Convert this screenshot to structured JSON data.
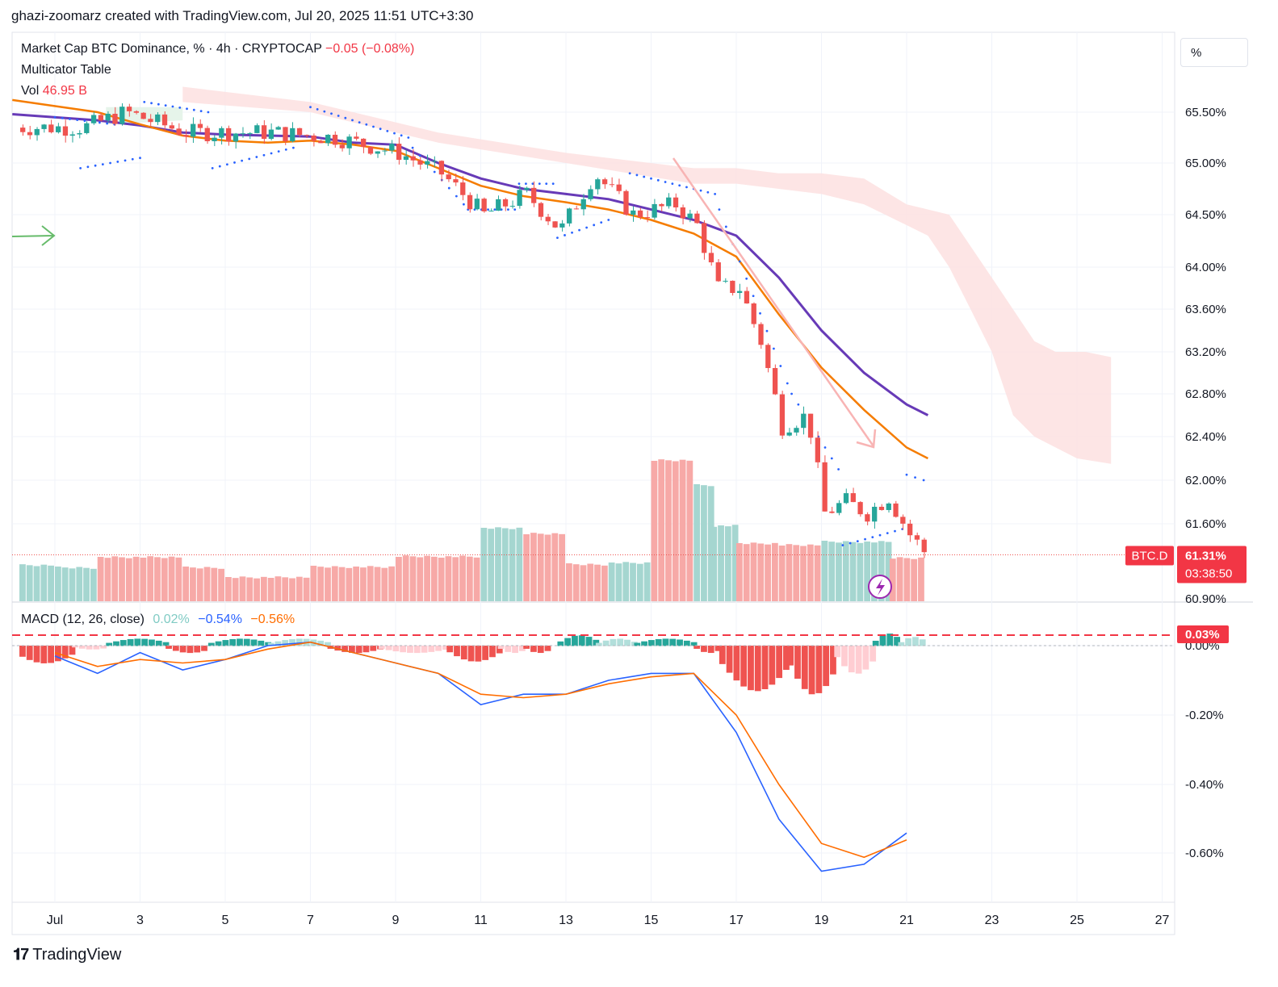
{
  "header": {
    "author_line": "ghazi-zoomarz created with TradingView.com, Jul 20, 2025 11:51 UTC+3:30"
  },
  "legend": {
    "symbol": "Market Cap BTC Dominance, % · 4h · CRYPTOCAP",
    "change": "−0.05 (−0.08%)",
    "indicator": "Multicator Table",
    "vol_label": "Vol",
    "vol_value": "46.95 B",
    "macd_label": "MACD (12, 26, close)",
    "macd_hist": "0.02%",
    "macd_line": "−0.54%",
    "macd_signal": "−0.56%"
  },
  "price_scale": {
    "unit": "%"
  },
  "price_tag": {
    "symbol": "BTC.D",
    "value": "61.31%",
    "countdown": "03:38:50"
  },
  "macd_tag": {
    "value": "0.03%"
  },
  "brand": {
    "name": "TradingView"
  },
  "colors": {
    "up": "#26a69a",
    "down": "#ef5350",
    "ma_purple": "#673ab7",
    "ma_orange": "#f57c00",
    "macd_line": "#2962ff",
    "signal_line": "#ff6d00",
    "cloud": "#fde0e0",
    "psar": "#2962ff"
  },
  "chart_data": [
    {
      "type": "candlestick",
      "title": "Market Cap BTC Dominance",
      "x_ticks": [
        "Jul",
        "3",
        "5",
        "7",
        "9",
        "11",
        "13",
        "15",
        "17",
        "19",
        "21",
        "23",
        "25",
        "27"
      ],
      "y_ticks": [
        "65.50%",
        "65.00%",
        "64.50%",
        "64.00%",
        "63.60%",
        "63.20%",
        "62.80%",
        "62.40%",
        "62.00%",
        "61.60%",
        "60.90%"
      ],
      "ylim": [
        60.9,
        65.8
      ],
      "last_price": 61.31,
      "key_levels": [
        {
          "x": 0.6,
          "y": 65.35
        },
        {
          "x": 1.6,
          "y": 65.5
        },
        {
          "x": 3.0,
          "y": 65.3
        },
        {
          "x": 5.0,
          "y": 65.3
        },
        {
          "x": 6.5,
          "y": 65.25
        },
        {
          "x": 8.0,
          "y": 65.1
        },
        {
          "x": 9.0,
          "y": 64.9
        },
        {
          "x": 10.0,
          "y": 64.5
        },
        {
          "x": 11.0,
          "y": 64.7
        },
        {
          "x": 11.8,
          "y": 64.35
        },
        {
          "x": 12.6,
          "y": 64.9
        },
        {
          "x": 13.5,
          "y": 64.5
        },
        {
          "x": 14.5,
          "y": 64.6
        },
        {
          "x": 15.0,
          "y": 64.4
        },
        {
          "x": 15.5,
          "y": 63.8
        },
        {
          "x": 16.0,
          "y": 63.8
        },
        {
          "x": 16.5,
          "y": 63.3
        },
        {
          "x": 17.0,
          "y": 62.5
        },
        {
          "x": 17.6,
          "y": 62.6
        },
        {
          "x": 18.0,
          "y": 61.7
        },
        {
          "x": 18.5,
          "y": 61.8
        },
        {
          "x": 19.0,
          "y": 61.7
        },
        {
          "x": 19.5,
          "y": 61.85
        },
        {
          "x": 20.0,
          "y": 61.5
        },
        {
          "x": 20.4,
          "y": 61.31
        }
      ]
    },
    {
      "type": "line",
      "title": "MACD (12, 26, close)",
      "y_ticks": [
        "0.00%",
        "-0.20%",
        "-0.40%",
        "-0.60%"
      ],
      "ylim": [
        -0.68,
        0.06
      ],
      "series": [
        {
          "name": "MACD",
          "points": [
            {
              "x": 0,
              "y": -0.03
            },
            {
              "x": 1,
              "y": -0.08
            },
            {
              "x": 2,
              "y": -0.02
            },
            {
              "x": 3,
              "y": -0.07
            },
            {
              "x": 4,
              "y": -0.04
            },
            {
              "x": 5,
              "y": 0.0
            },
            {
              "x": 6,
              "y": 0.01
            },
            {
              "x": 7,
              "y": -0.02
            },
            {
              "x": 8,
              "y": -0.05
            },
            {
              "x": 9,
              "y": -0.08
            },
            {
              "x": 10,
              "y": -0.17
            },
            {
              "x": 11,
              "y": -0.14
            },
            {
              "x": 12,
              "y": -0.14
            },
            {
              "x": 13,
              "y": -0.1
            },
            {
              "x": 14,
              "y": -0.08
            },
            {
              "x": 15,
              "y": -0.08
            },
            {
              "x": 16,
              "y": -0.25
            },
            {
              "x": 17,
              "y": -0.5
            },
            {
              "x": 18,
              "y": -0.65
            },
            {
              "x": 19,
              "y": -0.63
            },
            {
              "x": 20,
              "y": -0.54
            }
          ]
        },
        {
          "name": "Signal",
          "points": [
            {
              "x": 0,
              "y": -0.02
            },
            {
              "x": 1,
              "y": -0.06
            },
            {
              "x": 2,
              "y": -0.04
            },
            {
              "x": 3,
              "y": -0.05
            },
            {
              "x": 4,
              "y": -0.04
            },
            {
              "x": 5,
              "y": -0.01
            },
            {
              "x": 6,
              "y": 0.01
            },
            {
              "x": 7,
              "y": -0.02
            },
            {
              "x": 8,
              "y": -0.05
            },
            {
              "x": 9,
              "y": -0.08
            },
            {
              "x": 10,
              "y": -0.14
            },
            {
              "x": 11,
              "y": -0.15
            },
            {
              "x": 12,
              "y": -0.14
            },
            {
              "x": 13,
              "y": -0.11
            },
            {
              "x": 14,
              "y": -0.09
            },
            {
              "x": 15,
              "y": -0.08
            },
            {
              "x": 16,
              "y": -0.2
            },
            {
              "x": 17,
              "y": -0.4
            },
            {
              "x": 18,
              "y": -0.57
            },
            {
              "x": 19,
              "y": -0.61
            },
            {
              "x": 20,
              "y": -0.56
            }
          ]
        }
      ]
    }
  ]
}
